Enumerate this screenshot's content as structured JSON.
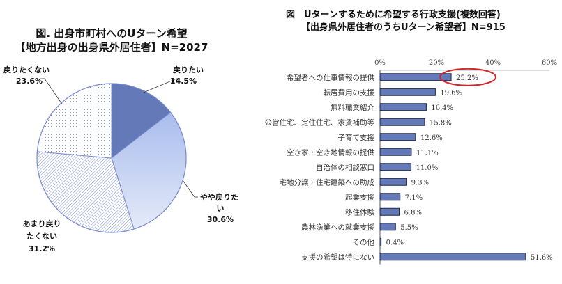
{
  "chart_data": [
    {
      "type": "pie",
      "title_line1": "図. 出身市町村へのUターン希望",
      "title_line2": "【地方出身の出身県外居住者】N=2027",
      "slices": [
        {
          "label": "戻りたい",
          "value": 14.5,
          "value_label": "14.5%",
          "fill": "solid",
          "color": "#6479b8"
        },
        {
          "label": "やや戻りたい",
          "label_lines": [
            "やや戻りた",
            "い"
          ],
          "value": 30.6,
          "value_label": "30.6%",
          "fill": "gradient",
          "color": "#b3c4ee"
        },
        {
          "label": "あまり戻りたくない",
          "label_lines": [
            "あまり戻り",
            "たくない"
          ],
          "value": 31.2,
          "value_label": "31.2%",
          "fill": "diagonal-hatch",
          "color": "#8a9ad0"
        },
        {
          "label": "戻りたくない",
          "value": 23.6,
          "value_label": "23.6%",
          "fill": "dots",
          "color": "#8a9ad0"
        }
      ]
    },
    {
      "type": "bar",
      "orientation": "horizontal",
      "title_line1": "図　Uターンするために希望する行政支援(複数回答)",
      "title_line2": "【出身県外居住者のうちUターン希望者】N=915",
      "xlim": [
        0,
        60
      ],
      "ticks": [
        "0%",
        "20%",
        "40%",
        "60%"
      ],
      "tick_values": [
        0,
        20,
        40,
        60
      ],
      "bar_color": "#6479b8",
      "highlight_color": "#d0262b",
      "highlight_index": 0,
      "categories": [
        "希望者への仕事情報の提供",
        "転居費用の支援",
        "無料職業紹介",
        "公営住宅、定住住宅、家賃補助等",
        "子育て支援",
        "空き家・空き地情報の提供",
        "自治体の相談窓口",
        "宅地分譲・住宅建築への助成",
        "起業支援",
        "移住体験",
        "農林漁業への就業支援",
        "その他",
        "支援の希望は特にない"
      ],
      "values": [
        25.2,
        19.6,
        16.4,
        15.8,
        12.6,
        11.1,
        11.0,
        9.3,
        7.1,
        6.8,
        5.5,
        0.4,
        51.6
      ],
      "value_labels": [
        "25.2%",
        "19.6%",
        "16.4%",
        "15.8%",
        "12.6%",
        "11.1%",
        "11.0%",
        "9.3%",
        "7.1%",
        "6.8%",
        "5.5%",
        "0.4%",
        "51.6%"
      ]
    }
  ]
}
